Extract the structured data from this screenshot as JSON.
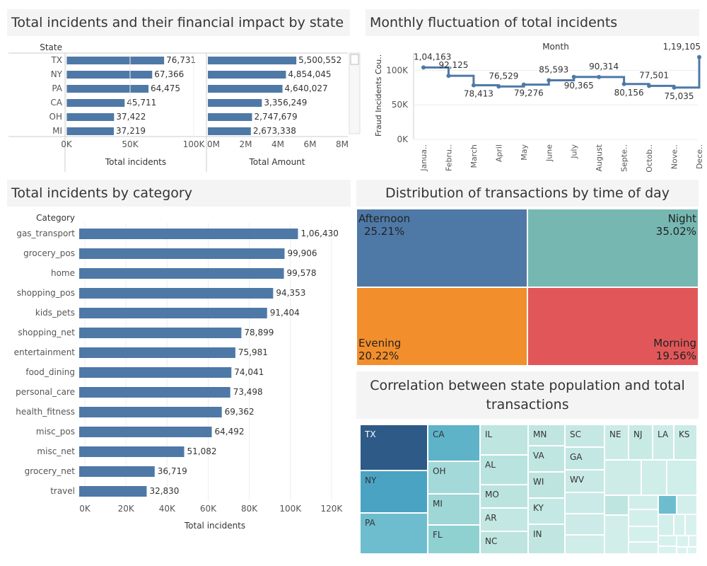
{
  "titles": {
    "state_impact": "Total incidents and their financial impact by state",
    "monthly": "Monthly fluctuation of total incidents",
    "category": "Total incidents by category",
    "time_of_day": "Distribution of transactions by time of day",
    "correlation": "Correlation between state population and total transactions"
  },
  "colors": {
    "bar": "#4e79a7",
    "afternoon": "#4e79a7",
    "night": "#76b7b2",
    "evening": "#f28e2b",
    "morning": "#e15759"
  },
  "chart_data": [
    {
      "type": "bar",
      "id": "state_incidents",
      "row_header": "State",
      "categories": [
        "TX",
        "NY",
        "PA",
        "CA",
        "OH",
        "MI"
      ],
      "values": [
        76731,
        67366,
        64475,
        45711,
        37422,
        37219
      ],
      "value_labels": [
        "76,731",
        "67,366",
        "64,475",
        "45,711",
        "37,422",
        "37,219"
      ],
      "xlabel": "Total incidents",
      "xticks": [
        "0K",
        "50K",
        "100K"
      ],
      "xlim": [
        0,
        100000
      ]
    },
    {
      "type": "bar",
      "id": "state_amount",
      "categories": [
        "TX",
        "NY",
        "PA",
        "CA",
        "OH",
        "MI"
      ],
      "values": [
        5500552,
        4854045,
        4640027,
        3356249,
        2747679,
        2673338
      ],
      "value_labels": [
        "5,500,552",
        "4,854,045",
        "4,640,027",
        "3,356,249",
        "2,747,679",
        "2,673,338"
      ],
      "xlabel": "Total Amount",
      "xticks": [
        "0M",
        "2M",
        "4M",
        "6M",
        "8M"
      ],
      "xlim": [
        0,
        8000000
      ]
    },
    {
      "type": "line",
      "id": "monthly",
      "header": "Month",
      "ylabel": "Fraud Incidents Cou..",
      "x": [
        "Janua..",
        "Febru..",
        "March",
        "April",
        "May",
        "June",
        "July",
        "August",
        "Septe..",
        "Octob..",
        "Nove..",
        "Dece.."
      ],
      "values": [
        104163,
        92125,
        78413,
        76529,
        79276,
        85593,
        90365,
        90314,
        80156,
        77501,
        75035,
        119105
      ],
      "value_labels": [
        "1,04,163",
        "92,125",
        "78,413",
        "76,529",
        "79,276",
        "85,593",
        "90,365",
        "90,314",
        "80,156",
        "77,501",
        "75,035",
        "1,19,105"
      ],
      "yticks": [
        "0K",
        "50K",
        "100K"
      ],
      "ylim": [
        0,
        125000
      ]
    },
    {
      "type": "bar",
      "id": "category",
      "row_header": "Category",
      "categories": [
        "gas_transport",
        "grocery_pos",
        "home",
        "shopping_pos",
        "kids_pets",
        "shopping_net",
        "entertainment",
        "food_dining",
        "personal_care",
        "health_fitness",
        "misc_pos",
        "misc_net",
        "grocery_net",
        "travel"
      ],
      "values": [
        106430,
        99906,
        99578,
        94353,
        91404,
        78899,
        75981,
        74041,
        73498,
        69362,
        64492,
        51082,
        36719,
        32830
      ],
      "value_labels": [
        "1,06,430",
        "99,906",
        "99,578",
        "94,353",
        "91,404",
        "78,899",
        "75,981",
        "74,041",
        "73,498",
        "69,362",
        "64,492",
        "51,082",
        "36,719",
        "32,830"
      ],
      "xlabel": "Total incidents",
      "xticks": [
        "0K",
        "20K",
        "40K",
        "60K",
        "80K",
        "100K",
        "120K"
      ],
      "xlim": [
        0,
        130000
      ]
    },
    {
      "type": "treemap",
      "id": "time_of_day",
      "items": [
        {
          "label": "Afternoon",
          "pct": "25.21%",
          "value": 25.21
        },
        {
          "label": "Night",
          "pct": "35.02%",
          "value": 35.02
        },
        {
          "label": "Evening",
          "pct": "20.22%",
          "value": 20.22
        },
        {
          "label": "Morning",
          "pct": "19.56%",
          "value": 19.56
        }
      ]
    },
    {
      "type": "treemap",
      "id": "state_population",
      "labels": [
        "TX",
        "NY",
        "PA",
        "CA",
        "OH",
        "MI",
        "FL",
        "IL",
        "AL",
        "MO",
        "AR",
        "NC",
        "MN",
        "VA",
        "WI",
        "KY",
        "IN",
        "SC",
        "GA",
        "WV",
        "NE",
        "NJ",
        "LA",
        "KS"
      ]
    }
  ]
}
